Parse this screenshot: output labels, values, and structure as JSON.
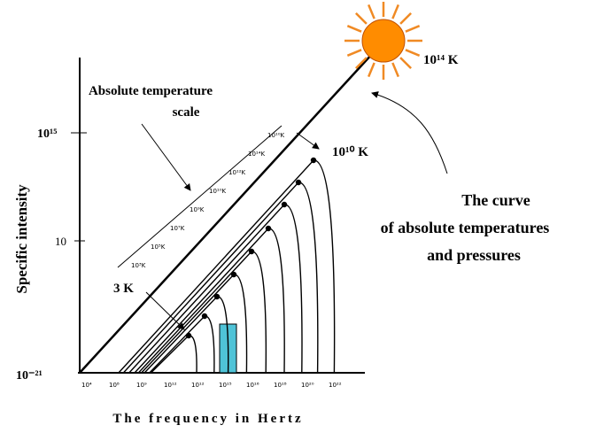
{
  "diagram": {
    "scale_label": [
      "Absolute temperature",
      "scale"
    ],
    "y_axis_title": "Specific intensity",
    "x_axis_title": "The frequency in Hertz",
    "y_labels": [
      "10¹⁵",
      "10",
      "10⁻²¹"
    ],
    "x_labels": [
      "10⁴",
      "10⁸",
      "10⁹",
      "10¹²",
      "10¹²",
      "10¹⁵",
      "10¹⁶",
      "10¹⁸",
      "10²⁰",
      "10²²"
    ],
    "curve_labels": [
      "10³K",
      "10⁵K",
      "10⁷K",
      "10⁹K",
      "10¹⁰K",
      "10¹²K",
      "10¹⁴K",
      "10¹⁰K"
    ],
    "low_temperature": "3 K",
    "high_temperature": "10¹⁰ K",
    "sun_temperature": "10¹⁴ K",
    "curve_note": [
      "The curve",
      "of absolute temperatures",
      "and pressures"
    ]
  }
}
